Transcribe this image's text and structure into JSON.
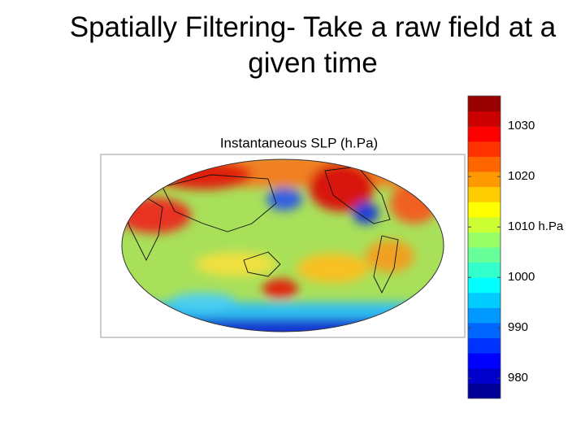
{
  "title": "Spatially Filtering- Take a raw field at a given time",
  "map": {
    "label": "Instantaneous SLP (h.Pa)"
  },
  "colorbar": {
    "colormap": "jet",
    "lim": [
      976,
      1036
    ],
    "ticks": [
      980,
      990,
      1000,
      {
        "value": 1010,
        "label": "1010 h.Pa"
      },
      1020,
      1030
    ]
  }
}
